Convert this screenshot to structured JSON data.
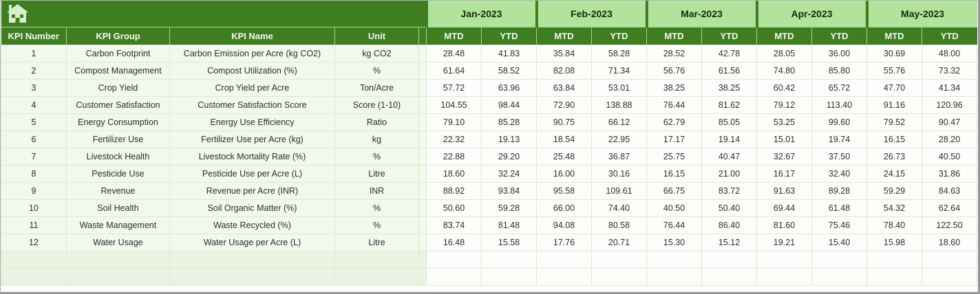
{
  "header": {
    "left_columns": [
      "KPI Number",
      "KPI Group",
      "KPI Name",
      "Unit"
    ],
    "months": [
      "Jan-2023",
      "Feb-2023",
      "Mar-2023",
      "Apr-2023",
      "May-2023"
    ],
    "period_columns": [
      "MTD",
      "YTD"
    ],
    "home_icon": "home-icon"
  },
  "rows": [
    {
      "number": "1",
      "group": "Carbon Footprint",
      "name": "Carbon Emission per Acre (kg CO2)",
      "unit": "kg CO2",
      "values": [
        "28.48",
        "41.83",
        "35.84",
        "58.28",
        "28.52",
        "42.78",
        "28.05",
        "36.00",
        "30.69",
        "48.00"
      ]
    },
    {
      "number": "2",
      "group": "Compost Management",
      "name": "Compost Utilization (%)",
      "unit": "%",
      "values": [
        "61.64",
        "58.52",
        "82.08",
        "71.34",
        "56.76",
        "61.56",
        "74.80",
        "85.80",
        "55.76",
        "73.32"
      ]
    },
    {
      "number": "3",
      "group": "Crop Yield",
      "name": "Crop Yield per Acre",
      "unit": "Ton/Acre",
      "values": [
        "57.72",
        "63.96",
        "63.84",
        "53.01",
        "38.25",
        "38.25",
        "60.42",
        "65.72",
        "47.70",
        "41.34"
      ]
    },
    {
      "number": "4",
      "group": "Customer Satisfaction",
      "name": "Customer Satisfaction Score",
      "unit": "Score (1-10)",
      "values": [
        "104.55",
        "98.44",
        "72.90",
        "138.88",
        "76.44",
        "81.62",
        "79.12",
        "113.40",
        "91.16",
        "120.96"
      ]
    },
    {
      "number": "5",
      "group": "Energy Consumption",
      "name": "Energy Use Efficiency",
      "unit": "Ratio",
      "values": [
        "79.10",
        "85.28",
        "90.75",
        "66.12",
        "62.79",
        "85.05",
        "53.25",
        "99.60",
        "79.52",
        "90.47"
      ]
    },
    {
      "number": "6",
      "group": "Fertilizer Use",
      "name": "Fertilizer Use per Acre (kg)",
      "unit": "kg",
      "values": [
        "22.32",
        "19.13",
        "18.54",
        "22.95",
        "17.17",
        "19.14",
        "15.01",
        "19.74",
        "16.15",
        "28.20"
      ]
    },
    {
      "number": "7",
      "group": "Livestock Health",
      "name": "Livestock Mortality Rate (%)",
      "unit": "%",
      "values": [
        "22.88",
        "29.20",
        "25.48",
        "36.87",
        "25.75",
        "40.47",
        "32.67",
        "37.50",
        "26.73",
        "40.50"
      ]
    },
    {
      "number": "8",
      "group": "Pesticide Use",
      "name": "Pesticide Use per Acre (L)",
      "unit": "Litre",
      "values": [
        "18.60",
        "32.24",
        "16.00",
        "30.16",
        "16.15",
        "21.00",
        "16.17",
        "32.40",
        "24.15",
        "31.86"
      ]
    },
    {
      "number": "9",
      "group": "Revenue",
      "name": "Revenue per Acre (INR)",
      "unit": "INR",
      "values": [
        "88.92",
        "93.84",
        "95.58",
        "109.61",
        "66.75",
        "83.72",
        "91.63",
        "89.28",
        "59.29",
        "84.63"
      ]
    },
    {
      "number": "10",
      "group": "Soil Health",
      "name": "Soil Organic Matter (%)",
      "unit": "%",
      "values": [
        "50.60",
        "59.28",
        "66.00",
        "74.40",
        "40.50",
        "50.40",
        "69.44",
        "61.48",
        "54.32",
        "62.64"
      ]
    },
    {
      "number": "11",
      "group": "Waste Management",
      "name": "Waste Recycled (%)",
      "unit": "%",
      "values": [
        "83.74",
        "81.48",
        "94.08",
        "80.58",
        "76.44",
        "86.40",
        "81.60",
        "75.46",
        "78.40",
        "122.50"
      ]
    },
    {
      "number": "12",
      "group": "Water Usage",
      "name": "Water Usage per Acre (L)",
      "unit": "Litre",
      "values": [
        "16.48",
        "15.58",
        "17.76",
        "20.71",
        "15.30",
        "15.12",
        "19.21",
        "15.40",
        "15.98",
        "18.60"
      ]
    }
  ],
  "empty_row_count": 2,
  "colors": {
    "dark_green": "#3e7e20",
    "light_green": "#b2e39c",
    "row_tint": "#f1f8ec",
    "empty_tint": "#ebf4e2",
    "cell_white": "#fdfdfb",
    "grid_line": "#dcead2",
    "header_divider": "#a6d788",
    "icon_fill": "#d9f0cd",
    "frame_gray": "#989898"
  }
}
